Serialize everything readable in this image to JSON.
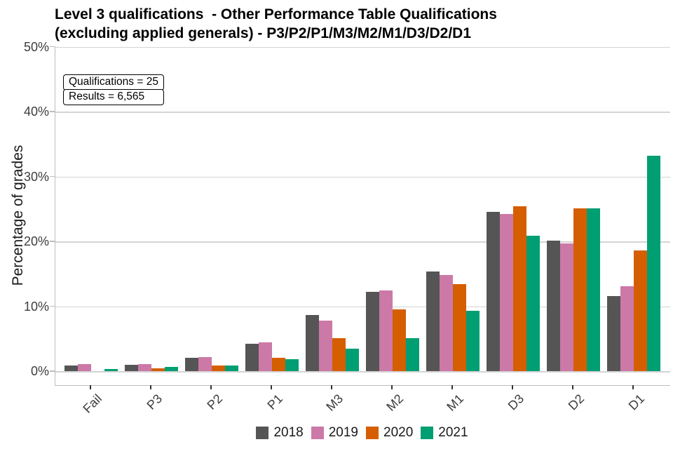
{
  "chart_data": {
    "type": "bar",
    "title": "Level 3 qualifications  - Other Performance Table Qualifications\n(excluding applied generals) - P3/P2/P1/M3/M2/M1/D3/D2/D1",
    "ylabel": "Percentage of grades",
    "xlabel": "",
    "ylim": [
      0,
      50
    ],
    "ytick_step": 10,
    "ytick_suffix": "%",
    "grid": true,
    "legend_position": "bottom",
    "categories": [
      "Fail",
      "P3",
      "P2",
      "P1",
      "M3",
      "M2",
      "M1",
      "D3",
      "D2",
      "D1"
    ],
    "series": [
      {
        "name": "2018",
        "color": "#555555",
        "values": [
          0.9,
          1.0,
          2.1,
          4.2,
          8.7,
          12.2,
          15.3,
          24.5,
          20.1,
          11.6
        ]
      },
      {
        "name": "2019",
        "color": "#CC79A7",
        "values": [
          1.1,
          1.1,
          2.2,
          4.4,
          7.8,
          12.4,
          14.8,
          24.2,
          19.7,
          13.1
        ]
      },
      {
        "name": "2020",
        "color": "#D55E00",
        "values": [
          0.0,
          0.4,
          0.9,
          2.1,
          5.1,
          9.5,
          13.4,
          25.4,
          25.1,
          18.6
        ]
      },
      {
        "name": "2021",
        "color": "#009E73",
        "values": [
          0.3,
          0.7,
          0.9,
          1.8,
          3.5,
          5.1,
          9.3,
          20.9,
          25.1,
          33.2
        ]
      }
    ],
    "annotation_box": {
      "line1": "Qualifications = 25",
      "line2": "Results = 6,565"
    },
    "colors": {
      "gridline": "#d4d4d4",
      "axis_line": "#bdbdbd",
      "tick_label": "#3d3d3d",
      "title": "#000000"
    }
  }
}
